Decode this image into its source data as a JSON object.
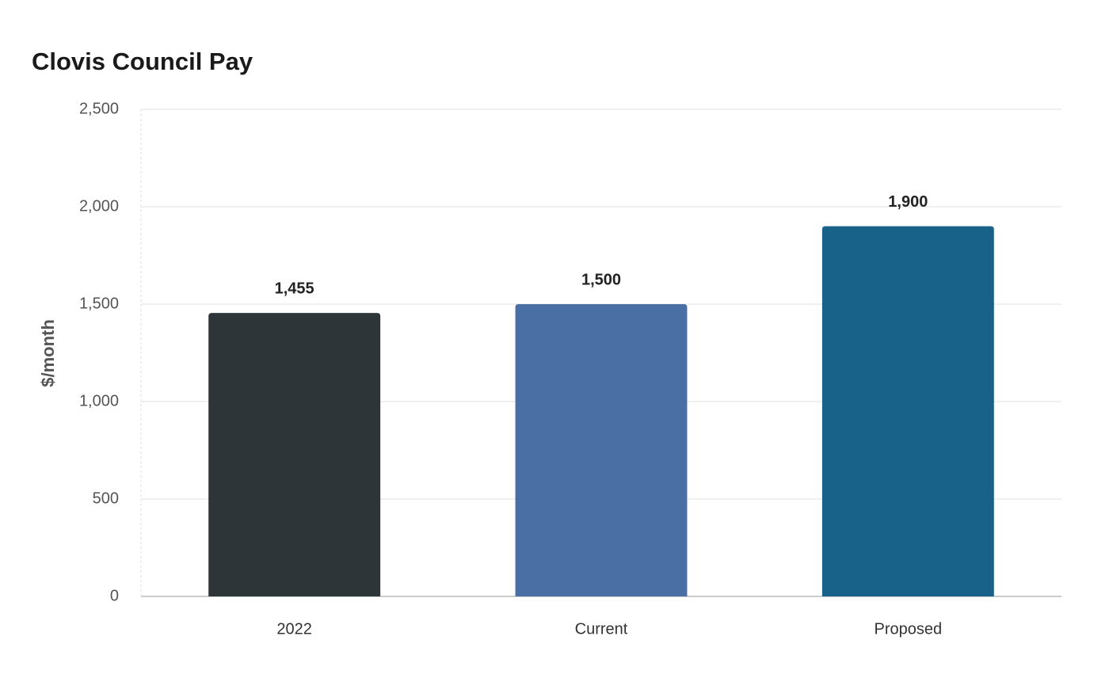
{
  "chart_data": {
    "type": "bar",
    "title": "Clovis Council Pay",
    "y_label": "$/month",
    "categories": [
      "2022",
      "Current",
      "Proposed"
    ],
    "values": [
      1455,
      1500,
      1900
    ],
    "value_labels": [
      "1,455",
      "1,500",
      "1,900"
    ],
    "colors": [
      "#2d3538",
      "#4a6fa5",
      "#186289"
    ],
    "ylim": [
      0,
      2500
    ],
    "yticks": [
      0,
      500,
      {
        "value": 1000,
        "label": "1,000"
      },
      {
        "value": 1500,
        "label": "1,500"
      },
      {
        "value": 2000,
        "label": "2,000"
      },
      {
        "value": 2500,
        "label": "2,500"
      }
    ],
    "grid": true
  }
}
